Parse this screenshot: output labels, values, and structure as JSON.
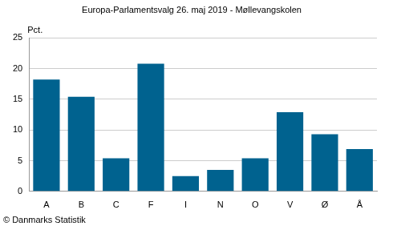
{
  "chart_data": {
    "type": "bar",
    "title": "Europa-Parlamentsvalg 26. maj 2019 - Møllevangskolen",
    "ylabel": "Pct.",
    "source": "© Danmarks Statistik",
    "categories": [
      "A",
      "B",
      "C",
      "F",
      "I",
      "N",
      "O",
      "V",
      "Ø",
      "Å"
    ],
    "values": [
      18.2,
      15.4,
      5.4,
      20.8,
      2.5,
      3.5,
      5.4,
      12.9,
      9.3,
      6.9
    ],
    "color": "#00628f",
    "ylim": [
      0,
      25
    ],
    "yticks": [
      0,
      5,
      10,
      15,
      20,
      25
    ],
    "grid": true
  }
}
